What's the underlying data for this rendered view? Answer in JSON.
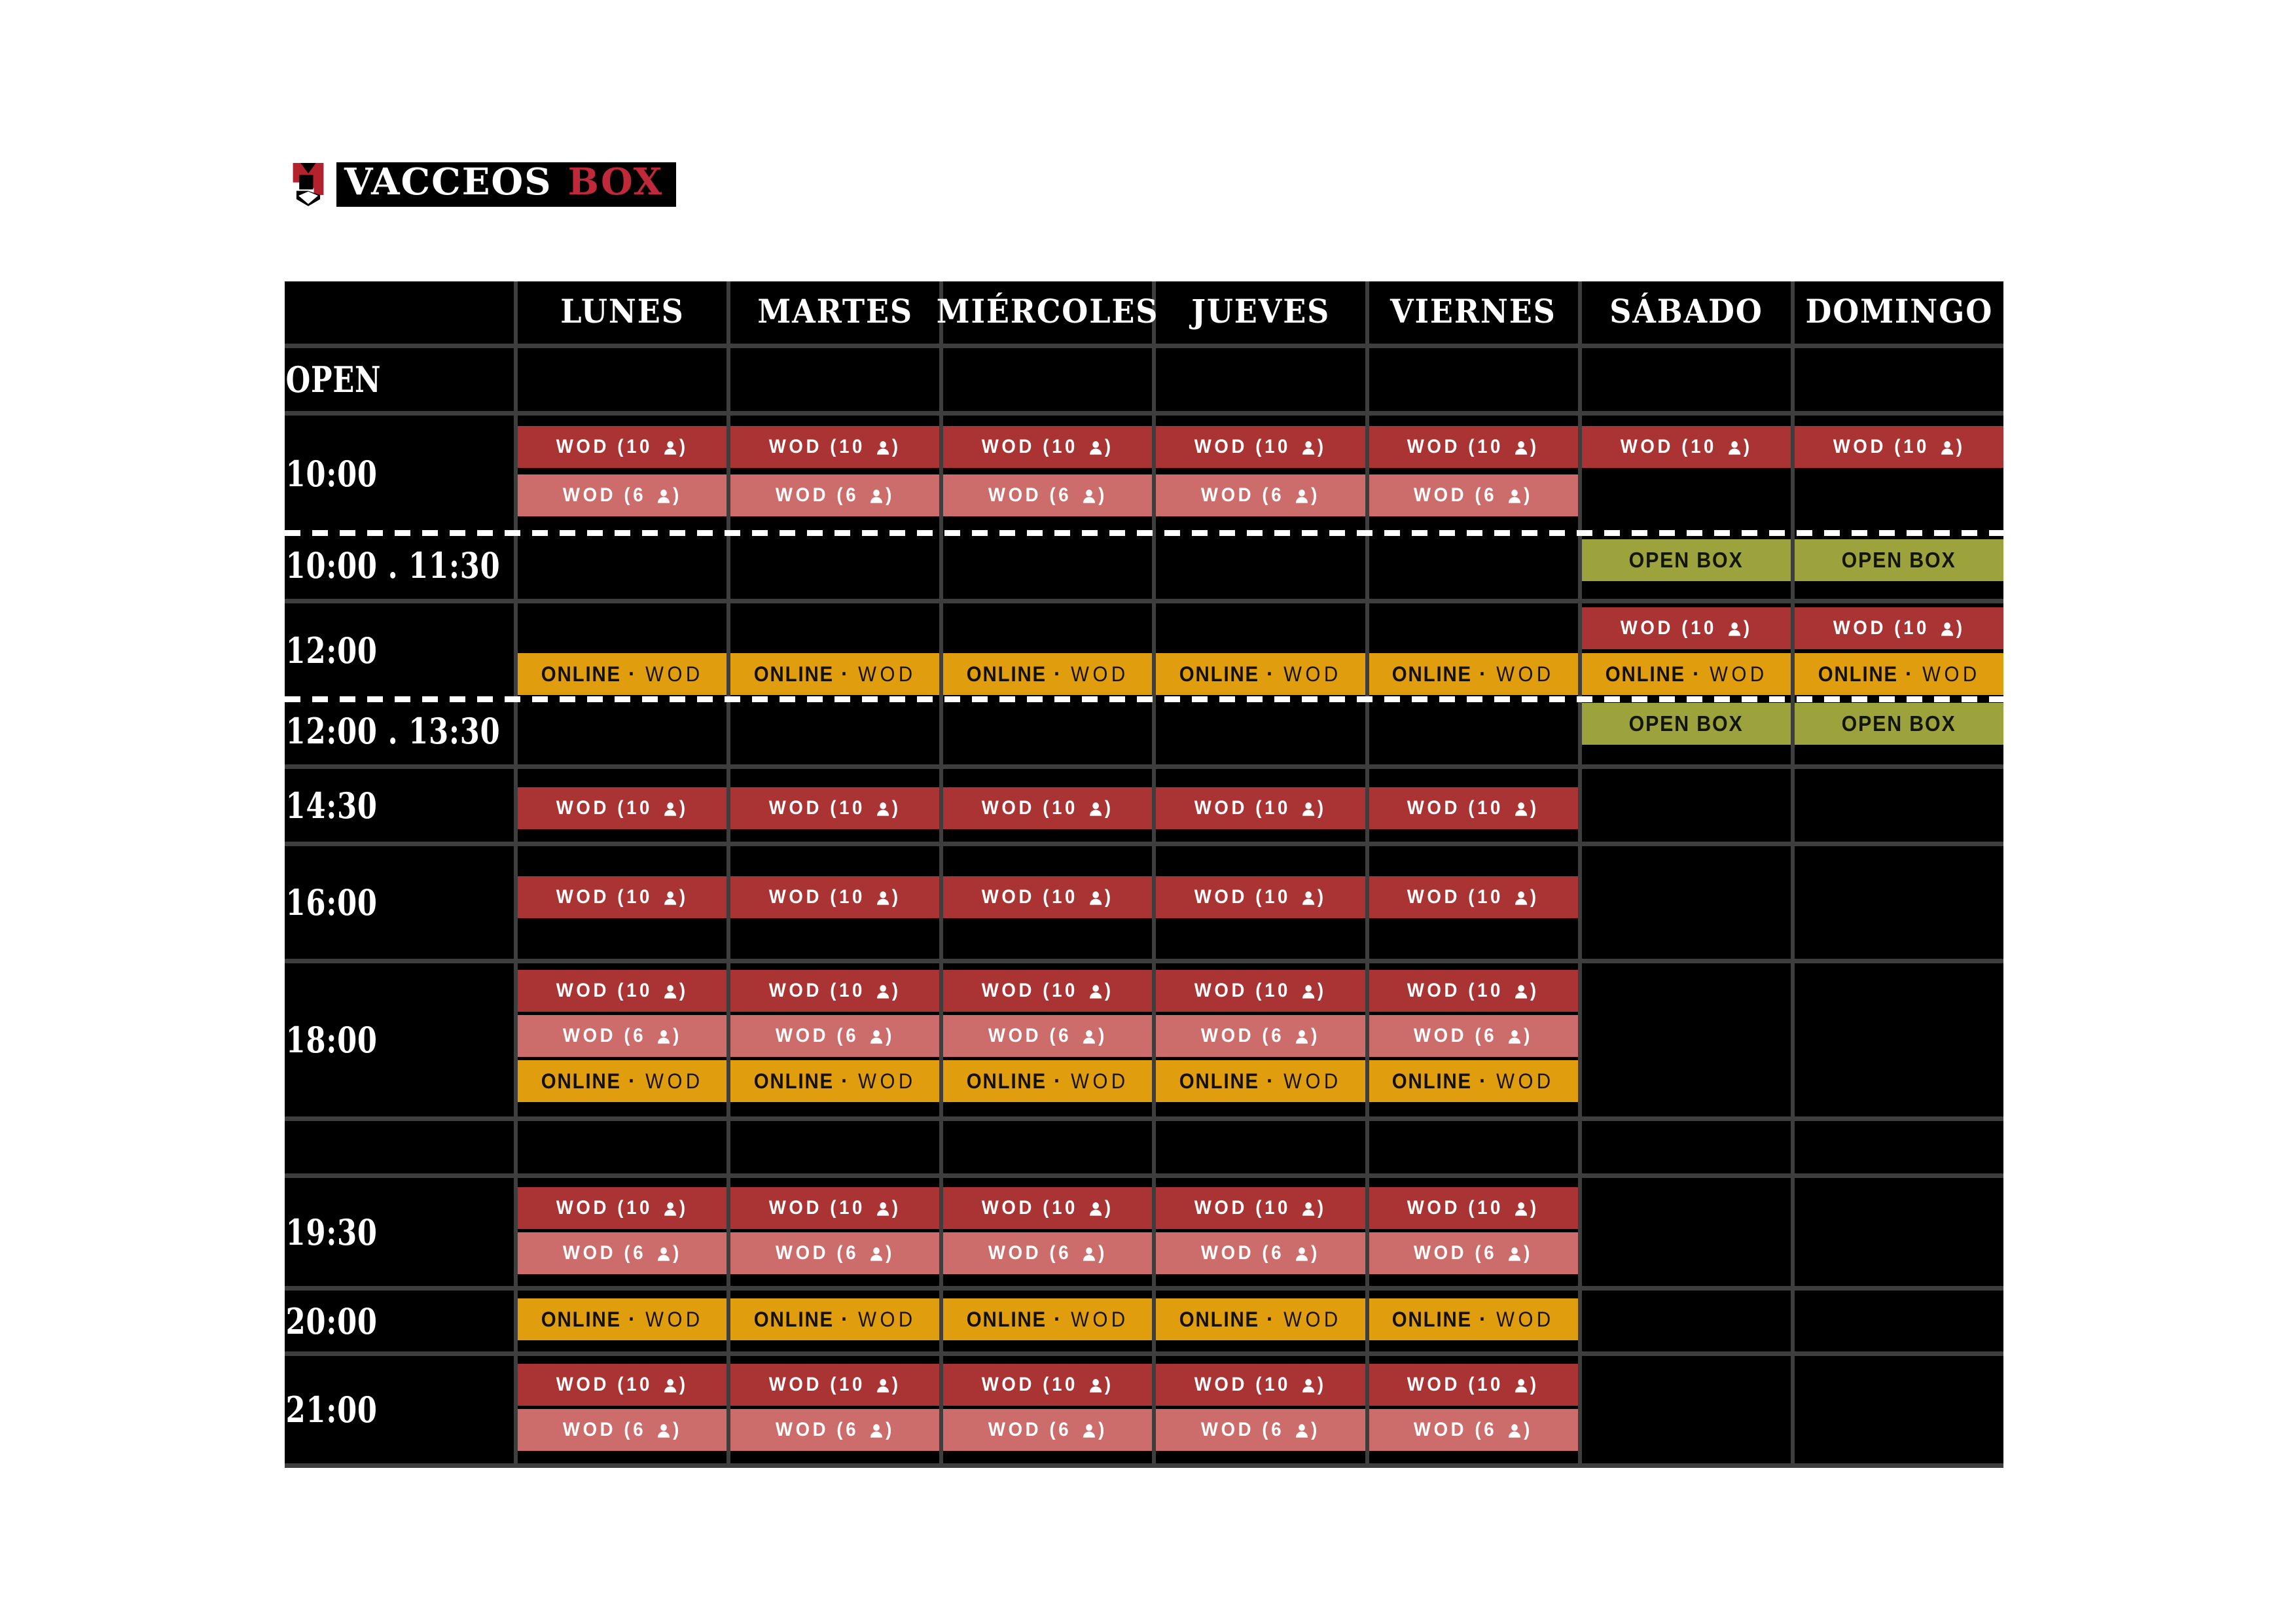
{
  "logo": {
    "name_primary": "VACCEOS",
    "name_accent": "BOX",
    "accent_color": "#C0293A",
    "icon": "wolf-head-logo"
  },
  "table": {
    "days": [
      "LUNES",
      "MARTES",
      "MIÉRCOLES",
      "JUEVES",
      "VIERNES",
      "SÁBADO",
      "DOMINGO"
    ],
    "chips": {
      "wod10": {
        "prefix": "WOD (10",
        "suffix": ")",
        "icon": "person-icon",
        "bg": "#AA3433",
        "fg": "#ffffff"
      },
      "wod6": {
        "prefix": "WOD (6",
        "suffix": ")",
        "icon": "person-icon",
        "bg": "#CC6C6B",
        "fg": "#ffffff"
      },
      "online": {
        "bold": "ONLINE",
        "sep": "·",
        "rest": "WOD",
        "bg": "#E09D0E",
        "fg": "#121007"
      },
      "openbox": {
        "label": "OPEN BOX",
        "bg": "#9CA33C",
        "fg": "#13150b"
      }
    },
    "grid_color": "#3e3e3e",
    "background": "#000000",
    "rows": [
      {
        "time": "OPEN",
        "dashed_top": false,
        "lines": []
      },
      {
        "time": "10:00",
        "dashed_top": false,
        "lines": [
          [
            "wod10",
            "wod10",
            "wod10",
            "wod10",
            "wod10",
            "wod10",
            "wod10"
          ],
          [
            "wod6",
            "wod6",
            "wod6",
            "wod6",
            "wod6",
            null,
            null
          ]
        ]
      },
      {
        "time": "10:00 . 11:30",
        "dashed_top": true,
        "lines": [
          [
            null,
            null,
            null,
            null,
            null,
            "openbox",
            "openbox"
          ]
        ]
      },
      {
        "time": "12:00",
        "dashed_top": false,
        "lines": [
          [
            null,
            null,
            null,
            null,
            null,
            "wod10",
            "wod10"
          ],
          [
            "online",
            "online",
            "online",
            "online",
            "online",
            "online",
            "online"
          ]
        ]
      },
      {
        "time": "12:00 . 13:30",
        "dashed_top": true,
        "lines": [
          [
            null,
            null,
            null,
            null,
            null,
            "openbox",
            "openbox"
          ]
        ]
      },
      {
        "time": "14:30",
        "dashed_top": false,
        "lines": [
          [
            "wod10",
            "wod10",
            "wod10",
            "wod10",
            "wod10",
            null,
            null
          ]
        ]
      },
      {
        "time": "16:00",
        "dashed_top": false,
        "lines": [
          [
            "wod10",
            "wod10",
            "wod10",
            "wod10",
            "wod10",
            null,
            null
          ]
        ]
      },
      {
        "time": "18:00",
        "dashed_top": false,
        "lines": [
          [
            "wod10",
            "wod10",
            "wod10",
            "wod10",
            "wod10",
            null,
            null
          ],
          [
            "wod6",
            "wod6",
            "wod6",
            "wod6",
            "wod6",
            null,
            null
          ],
          [
            "online",
            "online",
            "online",
            "online",
            "online",
            null,
            null
          ]
        ]
      },
      {
        "time": "",
        "dashed_top": false,
        "lines": []
      },
      {
        "time": "19:30",
        "dashed_top": false,
        "lines": [
          [
            "wod10",
            "wod10",
            "wod10",
            "wod10",
            "wod10",
            null,
            null
          ],
          [
            "wod6",
            "wod6",
            "wod6",
            "wod6",
            "wod6",
            null,
            null
          ]
        ]
      },
      {
        "time": "20:00",
        "dashed_top": false,
        "lines": [
          [
            "online",
            "online",
            "online",
            "online",
            "online",
            null,
            null
          ]
        ]
      },
      {
        "time": "21:00",
        "dashed_top": false,
        "lines": [
          [
            "wod10",
            "wod10",
            "wod10",
            "wod10",
            "wod10",
            null,
            null
          ],
          [
            "wod6",
            "wod6",
            "wod6",
            "wod6",
            "wod6",
            null,
            null
          ]
        ]
      }
    ]
  }
}
